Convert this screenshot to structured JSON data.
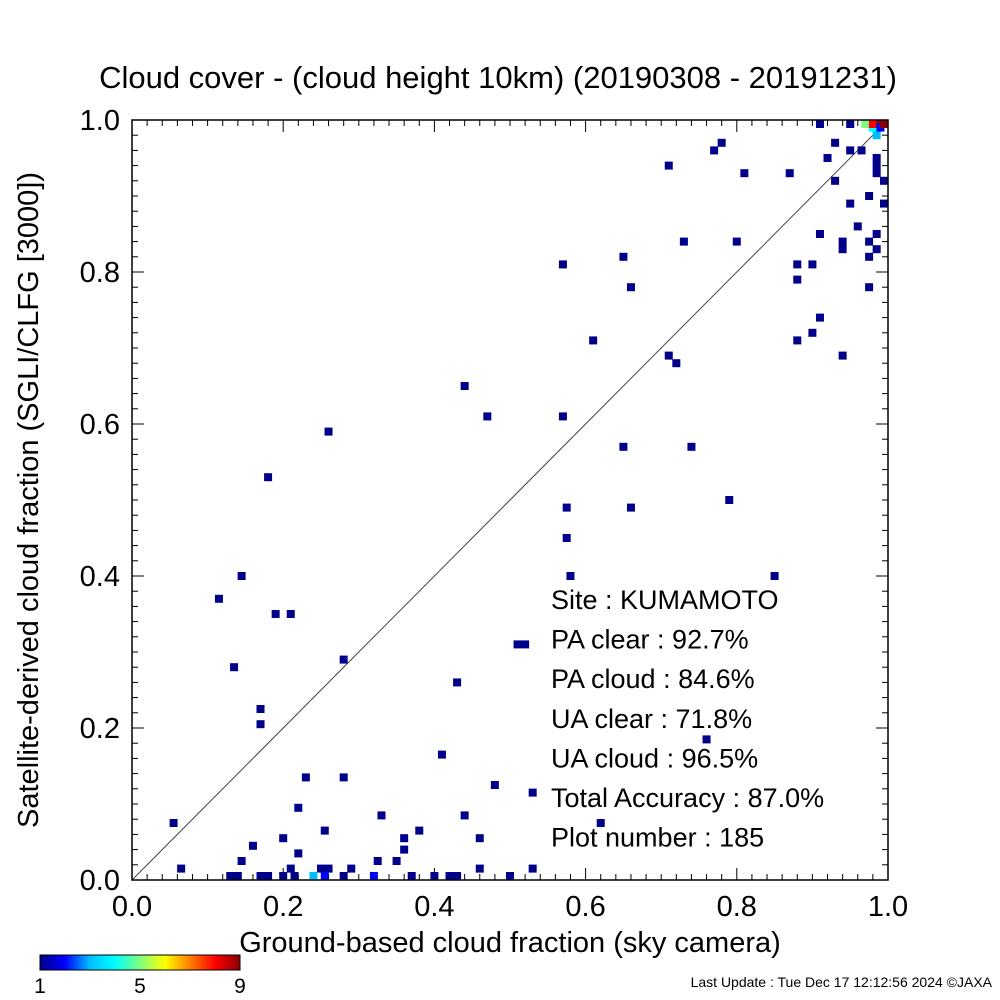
{
  "chart_data": {
    "type": "scatter",
    "title": "Cloud cover - (cloud height 10km)  (20190308 - 20191231)",
    "xlabel": "Ground-based cloud fraction (sky camera)",
    "ylabel": "Satellite-derived cloud fraction (SGLI/CLFG [3000])",
    "xlim": [
      0.0,
      1.0
    ],
    "ylim": [
      0.0,
      1.0
    ],
    "xticks": [
      "0.0",
      "0.2",
      "0.4",
      "0.6",
      "0.8",
      "1.0"
    ],
    "yticks": [
      "0.0",
      "0.2",
      "0.4",
      "0.6",
      "0.8",
      "1.0"
    ],
    "grid": false,
    "reference_line": "1:1 diagonal",
    "colorbar": {
      "labels": [
        "1",
        "5",
        "9"
      ],
      "min": 1,
      "max": 9,
      "colors": [
        "#00008b",
        "#0000ff",
        "#00bfff",
        "#00ffff",
        "#7fff7f",
        "#ffff00",
        "#ff7f00",
        "#ff0000",
        "#8b0000"
      ]
    },
    "stats": [
      {
        "label": "Site : KUMAMOTO"
      },
      {
        "label": "PA clear :  92.7%"
      },
      {
        "label": "PA cloud :  84.6%"
      },
      {
        "label": "UA clear :  71.8%"
      },
      {
        "label": "UA cloud :  96.5%"
      },
      {
        "label": "Total Accuracy :  87.0%"
      },
      {
        "label": "Plot number :       185"
      }
    ],
    "points": [
      [
        0.055,
        0.075,
        1
      ],
      [
        0.065,
        0.015,
        1
      ],
      [
        0.115,
        0.37,
        1
      ],
      [
        0.135,
        0.28,
        1
      ],
      [
        0.13,
        0.0,
        1
      ],
      [
        0.14,
        0.0,
        1
      ],
      [
        0.145,
        0.025,
        1
      ],
      [
        0.145,
        0.4,
        1
      ],
      [
        0.16,
        0.045,
        1
      ],
      [
        0.17,
        0.225,
        1
      ],
      [
        0.17,
        0.205,
        1
      ],
      [
        0.18,
        0.53,
        1
      ],
      [
        0.17,
        0.0,
        1
      ],
      [
        0.18,
        0.0,
        1
      ],
      [
        0.19,
        0.35,
        1
      ],
      [
        0.2,
        0.055,
        1
      ],
      [
        0.21,
        0.35,
        1
      ],
      [
        0.21,
        0.015,
        1
      ],
      [
        0.22,
        0.095,
        1
      ],
      [
        0.22,
        0.035,
        1
      ],
      [
        0.23,
        0.135,
        1
      ],
      [
        0.2,
        0.0,
        1
      ],
      [
        0.215,
        0.0,
        1
      ],
      [
        0.25,
        0.015,
        1
      ],
      [
        0.255,
        0.065,
        1
      ],
      [
        0.26,
        0.015,
        1
      ],
      [
        0.26,
        0.59,
        1
      ],
      [
        0.24,
        0.0,
        3
      ],
      [
        0.255,
        0.0,
        2
      ],
      [
        0.28,
        0.29,
        1
      ],
      [
        0.28,
        0.135,
        1
      ],
      [
        0.29,
        0.015,
        1
      ],
      [
        0.28,
        0.0,
        1
      ],
      [
        0.32,
        0.0,
        2
      ],
      [
        0.325,
        0.025,
        1
      ],
      [
        0.33,
        0.085,
        1
      ],
      [
        0.35,
        0.025,
        1
      ],
      [
        0.36,
        0.055,
        1
      ],
      [
        0.36,
        0.04,
        1
      ],
      [
        0.37,
        0.0,
        1
      ],
      [
        0.38,
        0.065,
        1
      ],
      [
        0.4,
        0.0,
        1
      ],
      [
        0.41,
        0.165,
        1
      ],
      [
        0.42,
        0.0,
        1
      ],
      [
        0.43,
        0.0,
        1
      ],
      [
        0.43,
        0.26,
        1
      ],
      [
        0.44,
        0.65,
        1
      ],
      [
        0.44,
        0.085,
        1
      ],
      [
        0.46,
        0.015,
        1
      ],
      [
        0.46,
        0.055,
        1
      ],
      [
        0.47,
        0.61,
        1
      ],
      [
        0.48,
        0.125,
        1
      ],
      [
        0.5,
        0.0,
        1
      ],
      [
        0.51,
        0.31,
        1
      ],
      [
        0.52,
        0.31,
        1
      ],
      [
        0.53,
        0.115,
        1
      ],
      [
        0.53,
        0.015,
        1
      ],
      [
        0.57,
        0.81,
        1
      ],
      [
        0.57,
        0.61,
        1
      ],
      [
        0.575,
        0.49,
        1
      ],
      [
        0.575,
        0.45,
        1
      ],
      [
        0.58,
        0.4,
        1
      ],
      [
        0.61,
        0.71,
        1
      ],
      [
        0.62,
        0.075,
        1
      ],
      [
        0.65,
        0.82,
        1
      ],
      [
        0.65,
        0.57,
        1
      ],
      [
        0.66,
        0.78,
        1
      ],
      [
        0.66,
        0.49,
        1
      ],
      [
        0.71,
        0.94,
        1
      ],
      [
        0.71,
        0.69,
        1
      ],
      [
        0.72,
        0.68,
        1
      ],
      [
        0.73,
        0.84,
        1
      ],
      [
        0.74,
        0.57,
        1
      ],
      [
        0.76,
        0.185,
        1
      ],
      [
        0.77,
        0.96,
        1
      ],
      [
        0.78,
        0.97,
        1
      ],
      [
        0.79,
        0.5,
        1
      ],
      [
        0.8,
        0.84,
        1
      ],
      [
        0.81,
        0.93,
        1
      ],
      [
        0.85,
        0.4,
        1
      ],
      [
        0.87,
        0.93,
        1
      ],
      [
        0.88,
        0.81,
        1
      ],
      [
        0.88,
        0.79,
        1
      ],
      [
        0.88,
        0.71,
        1
      ],
      [
        0.9,
        0.81,
        1
      ],
      [
        0.9,
        0.72,
        1
      ],
      [
        0.91,
        0.85,
        1
      ],
      [
        0.91,
        0.74,
        1
      ],
      [
        0.91,
        1.0,
        1
      ],
      [
        0.92,
        0.95,
        1
      ],
      [
        0.93,
        0.97,
        1
      ],
      [
        0.93,
        0.92,
        1
      ],
      [
        0.94,
        0.84,
        1
      ],
      [
        0.94,
        0.83,
        1
      ],
      [
        0.94,
        0.69,
        1
      ],
      [
        0.95,
        0.96,
        1
      ],
      [
        0.95,
        0.89,
        1
      ],
      [
        0.95,
        1.0,
        1
      ],
      [
        0.96,
        0.86,
        1
      ],
      [
        0.965,
        0.96,
        1
      ],
      [
        0.97,
        1.0,
        5
      ],
      [
        0.975,
        0.9,
        1
      ],
      [
        0.975,
        0.84,
        1
      ],
      [
        0.975,
        0.82,
        1
      ],
      [
        0.975,
        0.78,
        1
      ],
      [
        0.98,
        0.99,
        4
      ],
      [
        0.985,
        0.98,
        3
      ],
      [
        0.98,
        1.0,
        8
      ],
      [
        0.99,
        1.0,
        9
      ],
      [
        0.985,
        0.95,
        1
      ],
      [
        0.985,
        0.94,
        1
      ],
      [
        0.985,
        0.93,
        1
      ],
      [
        0.985,
        0.85,
        1
      ],
      [
        0.985,
        0.83,
        1
      ],
      [
        0.99,
        0.99,
        2
      ],
      [
        1.0,
        1.0,
        9
      ],
      [
        1.0,
        0.92,
        1
      ],
      [
        1.0,
        0.89,
        1
      ]
    ]
  },
  "footer": {
    "last_update": "Last Update : Tue Dec 17 12:12:56 2024  ©JAXA"
  }
}
